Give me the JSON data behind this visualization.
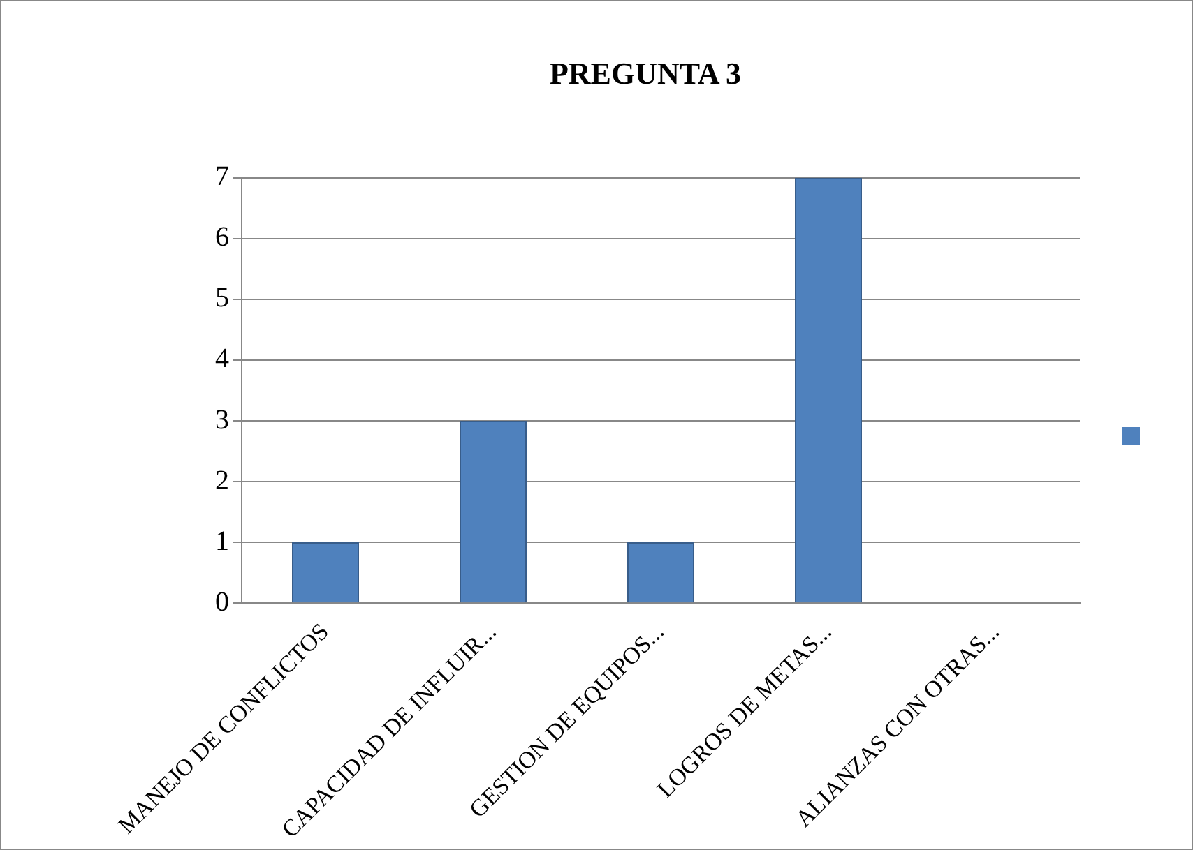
{
  "chart_data": {
    "type": "bar",
    "title": "PREGUNTA 3",
    "categories": [
      "MANEJO DE CONFLICTOS",
      "CAPACIDAD DE INFLUIR...",
      "GESTION DE EQUIPOS...",
      "LOGROS DE METAS...",
      "ALIANZAS CON OTRAS..."
    ],
    "series": [
      {
        "color": "#4f81bd",
        "values": [
          1,
          3,
          1,
          7,
          0
        ]
      }
    ],
    "ylim": [
      0,
      7
    ],
    "yticks": [
      0,
      1,
      2,
      3,
      4,
      5,
      6,
      7
    ],
    "grid": "y"
  }
}
